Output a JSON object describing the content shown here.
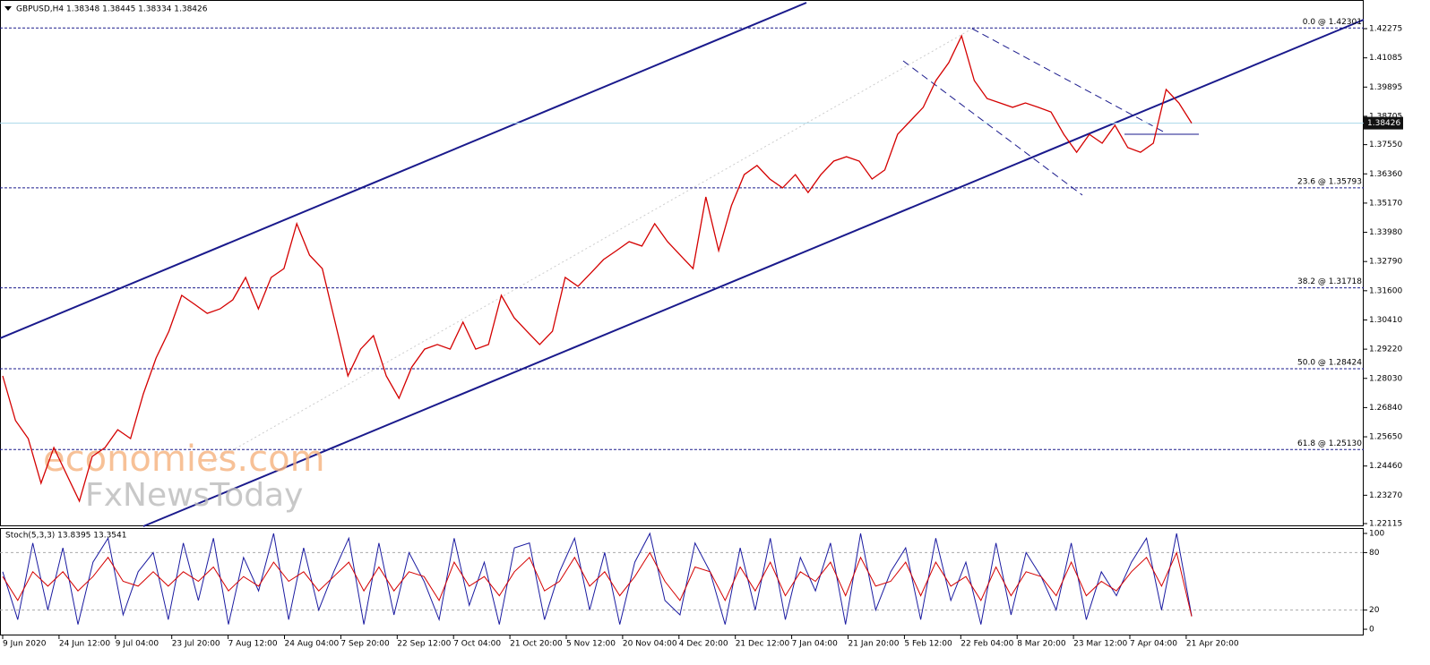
{
  "chart_data": [
    {
      "type": "line",
      "title": "GBPUSD,H4  1.38348 1.38445 1.38334 1.38426",
      "series": [
        {
          "color": "#d40000",
          "values": [
            1.2813,
            1.2631,
            1.2558,
            1.2376,
            1.2521,
            1.2412,
            1.2303,
            1.2485,
            1.2521,
            1.2594,
            1.2558,
            1.274,
            1.2886,
            1.2995,
            1.3141,
            1.3105,
            1.3068,
            1.3086,
            1.3123,
            1.3214,
            1.3086,
            1.3214,
            1.325,
            1.3433,
            1.3305,
            1.325,
            1.3032,
            1.2813,
            1.2922,
            1.2977,
            1.2813,
            1.2722,
            1.2849,
            1.2922,
            1.2941,
            1.2922,
            1.3032,
            1.2922,
            1.2941,
            1.3141,
            1.305,
            1.2995,
            1.2941,
            1.2995,
            1.3214,
            1.3178,
            1.3232,
            1.3287,
            1.3323,
            1.336,
            1.3342,
            1.3433,
            1.336,
            1.3305,
            1.325,
            1.3542,
            1.3323,
            1.3506,
            1.3633,
            1.367,
            1.3615,
            1.3579,
            1.3633,
            1.356,
            1.3633,
            1.3688,
            1.3706,
            1.3688,
            1.3615,
            1.3652,
            1.3797,
            1.3852,
            1.3907,
            1.4016,
            1.4089,
            1.4198,
            1.4016,
            1.3943,
            1.3925,
            1.3907,
            1.3925,
            1.3907,
            1.3888,
            1.3797,
            1.3724,
            1.3797,
            1.3761,
            1.3834,
            1.3743,
            1.3724,
            1.3761,
            1.398,
            1.3925,
            1.38426
          ]
        }
      ],
      "current_price": 1.38426,
      "ylim": [
        1.22006,
        1.43442
      ],
      "yticks": [
        {
          "value": 1.42275,
          "label": "1.42275"
        },
        {
          "value": 1.41085,
          "label": "1.41085"
        },
        {
          "value": 1.39895,
          "label": "1.39895"
        },
        {
          "value": 1.38705,
          "label": "1.38705"
        },
        {
          "value": 1.3755,
          "label": "1.37550"
        },
        {
          "value": 1.3636,
          "label": "1.36360"
        },
        {
          "value": 1.3517,
          "label": "1.35170"
        },
        {
          "value": 1.3398,
          "label": "1.33980"
        },
        {
          "value": 1.3279,
          "label": "1.32790"
        },
        {
          "value": 1.316,
          "label": "1.31600"
        },
        {
          "value": 1.3041,
          "label": "1.30410"
        },
        {
          "value": 1.2922,
          "label": "1.29220"
        },
        {
          "value": 1.2803,
          "label": "1.28030"
        },
        {
          "value": 1.2684,
          "label": "1.26840"
        },
        {
          "value": 1.2565,
          "label": "1.25650"
        },
        {
          "value": 1.2446,
          "label": "1.24460"
        },
        {
          "value": 1.2327,
          "label": "1.23270"
        },
        {
          "value": 1.22115,
          "label": "1.22115"
        }
      ],
      "fib_levels": [
        {
          "value": 1.42301,
          "label": "0.0 @ 1.42301"
        },
        {
          "value": 1.35793,
          "label": "23.6 @ 1.35793"
        },
        {
          "value": 1.31718,
          "label": "38.2 @ 1.31718"
        },
        {
          "value": 1.28424,
          "label": "50.0 @ 1.28424"
        },
        {
          "value": 1.2513,
          "label": "61.8 @ 1.25130"
        }
      ],
      "watermark": [
        "economies.com",
        "FxNewsToday"
      ]
    },
    {
      "type": "line",
      "title": "Stoch(5,3,3) 13.8395 13.3541",
      "series": [
        {
          "color": "#1a1aa0",
          "values": [
            60,
            10,
            90,
            20,
            85,
            5,
            70,
            95,
            15,
            60,
            80,
            10,
            90,
            30,
            95,
            5,
            75,
            40,
            100,
            10,
            85,
            20,
            60,
            95,
            5,
            90,
            15,
            80,
            50,
            10,
            95,
            25,
            70,
            5,
            85,
            90,
            10,
            60,
            95,
            20,
            80,
            5,
            70,
            100,
            30,
            15,
            90,
            60,
            5,
            85,
            20,
            95,
            10,
            75,
            40,
            90,
            5,
            100,
            20,
            60,
            85,
            10,
            95,
            30,
            70,
            5,
            90,
            15,
            80,
            55,
            20,
            90,
            10,
            60,
            35,
            70,
            95,
            20,
            100,
            13.8395
          ]
        },
        {
          "color": "#d40000",
          "values": [
            55,
            30,
            60,
            45,
            60,
            40,
            55,
            75,
            50,
            45,
            60,
            45,
            60,
            50,
            65,
            40,
            55,
            45,
            70,
            50,
            60,
            40,
            55,
            70,
            40,
            65,
            40,
            60,
            55,
            30,
            70,
            45,
            55,
            35,
            60,
            75,
            40,
            50,
            75,
            45,
            60,
            35,
            55,
            80,
            50,
            30,
            65,
            60,
            30,
            65,
            40,
            70,
            35,
            60,
            50,
            70,
            35,
            75,
            45,
            50,
            70,
            35,
            70,
            45,
            55,
            30,
            65,
            35,
            60,
            55,
            35,
            70,
            35,
            50,
            40,
            60,
            75,
            45,
            80,
            13.3541
          ]
        }
      ],
      "ylim": [
        -6.5,
        105.6
      ],
      "yticks": [
        0,
        20,
        80,
        100
      ],
      "time_labels": [
        "9 Jun 2020",
        "24 Jun 12:00",
        "9 Jul 04:00",
        "23 Jul 20:00",
        "7 Aug 12:00",
        "24 Aug 04:00",
        "7 Sep 20:00",
        "22 Sep 12:00",
        "7 Oct 04:00",
        "21 Oct 20:00",
        "5 Nov 12:00",
        "20 Nov 04:00",
        "4 Dec 20:00",
        "21 Dec 12:00",
        "7 Jan 04:00",
        "21 Jan 20:00",
        "5 Feb 12:00",
        "22 Feb 04:00",
        "8 Mar 20:00",
        "23 Mar 12:00",
        "7 Apr 04:00",
        "21 Apr 20:00"
      ]
    }
  ]
}
